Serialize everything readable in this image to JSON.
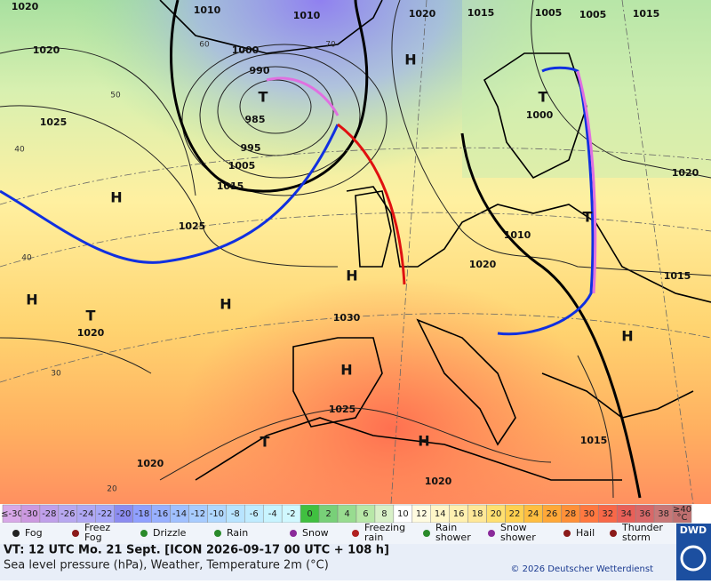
{
  "map": {
    "isobar_labels": [
      1020,
      1010,
      1010,
      1020,
      1015,
      1005,
      1005,
      1015,
      1020,
      1000,
      990,
      985,
      995,
      1005,
      1015,
      1025,
      1025,
      1000,
      1020,
      1010,
      1020,
      1015,
      1030,
      1020,
      1025,
      1015,
      1020,
      1020
    ],
    "high_labels": [
      "H",
      "H",
      "H",
      "H",
      "H",
      "H",
      "H",
      "H"
    ],
    "low_labels": [
      "T",
      "T",
      "T",
      "T",
      "T"
    ],
    "latitude_labels": [
      60,
      70,
      50,
      40,
      40,
      30,
      20
    ]
  },
  "scale": {
    "low": "≤-30",
    "high": "≥40",
    "unit": "°C",
    "steps": [
      -30,
      -28,
      -26,
      -24,
      -22,
      -20,
      -18,
      -16,
      -14,
      -12,
      -10,
      -8,
      -6,
      -4,
      -2,
      0,
      2,
      4,
      6,
      8,
      10,
      12,
      14,
      16,
      18,
      20,
      22,
      24,
      26,
      28,
      30,
      32,
      34,
      36,
      38
    ],
    "low_color": "#d8a8e8",
    "high_color": "#c07070",
    "colors": [
      "#cc99e0",
      "#c0a0ea",
      "#b8a8f0",
      "#b0a8f4",
      "#a8a8f8",
      "#8c8cf0",
      "#90a0ff",
      "#98b0ff",
      "#a0c0ff",
      "#a8ccff",
      "#b0d8ff",
      "#b8e4ff",
      "#c0ecff",
      "#c8f4ff",
      "#d0f8ff",
      "#40c040",
      "#78d078",
      "#98dc90",
      "#b8e8a8",
      "#d8f0c8",
      "#ffffff",
      "#fffbe0",
      "#fff6c8",
      "#fff0b0",
      "#ffe898",
      "#ffe070",
      "#ffd050",
      "#ffbe40",
      "#ffa838",
      "#ff9038",
      "#ff7840",
      "#f86848",
      "#e86058",
      "#d86868",
      "#c87878"
    ]
  },
  "legend": [
    "Fog",
    "Freez\nFog",
    "Drizzle",
    "Rain",
    "Snow",
    "Freezing\nrain",
    "Rain\nshower",
    "Snow\nshower",
    "Hail",
    "Thunder\nstorm"
  ],
  "footer": {
    "valid_time": "VT: 12 UTC Mo.  21 Sept. [ICON 2026-09-17  00 UTC + 108 h]",
    "description": "Sea level pressure (hPa), Weather, Temperature 2m (°C)",
    "copyright": "© 2026 Deutscher Wetterdienst",
    "logo": "DWD"
  }
}
